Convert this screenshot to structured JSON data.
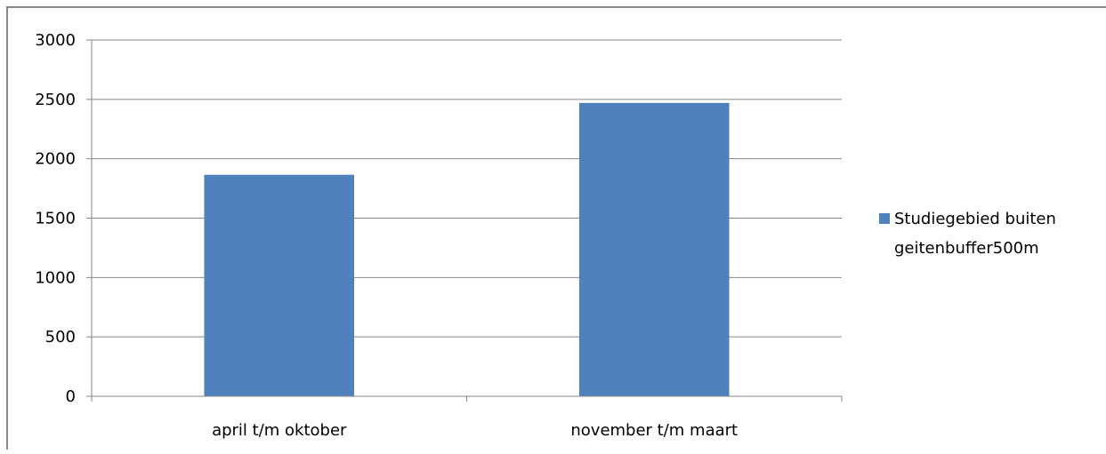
{
  "chart_data": {
    "type": "bar",
    "title": "",
    "xlabel": "",
    "ylabel": "",
    "categories": [
      "april t/m oktober",
      "november t/m maart"
    ],
    "series": [
      {
        "name": "Studiegebied buiten geitenbuffer500m",
        "name_lines": [
          "Studiegebied buiten",
          "geitenbuffer500m"
        ],
        "values": [
          1865,
          2470
        ],
        "color": "#4f81bd"
      }
    ],
    "ylim": [
      0,
      3000
    ],
    "yticks": [
      "0",
      "500",
      "1000",
      "1500",
      "2000",
      "2500",
      "3000"
    ],
    "grid": true,
    "legend_position": "right"
  },
  "colors": {
    "gridline": "#868686",
    "axis": "#868686",
    "frame": "#868686"
  }
}
